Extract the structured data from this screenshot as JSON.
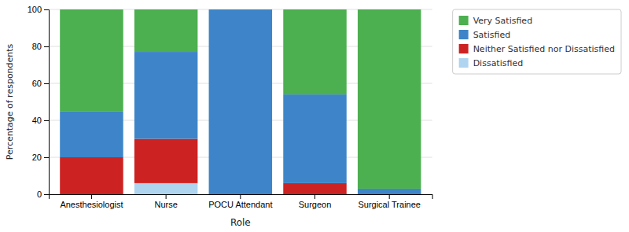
{
  "chart_data": {
    "type": "bar",
    "stacked": true,
    "categories": [
      "Anesthesiologist",
      "Nurse",
      "POCU Attendant",
      "Surgeon",
      "Surgical Trainee"
    ],
    "series": [
      {
        "name": "Dissatisfied",
        "color": "#aed4f0",
        "values": [
          0,
          6,
          0,
          0,
          0
        ]
      },
      {
        "name": "Neither Satisfied nor Dissatisfied",
        "color": "#cc2222",
        "values": [
          20,
          24,
          0,
          6,
          0
        ]
      },
      {
        "name": "Satisfied",
        "color": "#3d85c8",
        "values": [
          25,
          47,
          100,
          48,
          3
        ]
      },
      {
        "name": "Very Satisfied",
        "color": "#4caf50",
        "values": [
          55,
          23,
          0,
          46,
          97
        ]
      }
    ],
    "xlabel": "Role",
    "ylabel": "Percentage of respondents",
    "ylim": [
      0,
      100
    ],
    "yticks": [
      0,
      20,
      40,
      60,
      80,
      100
    ],
    "grid": true,
    "legend": "upper right"
  }
}
